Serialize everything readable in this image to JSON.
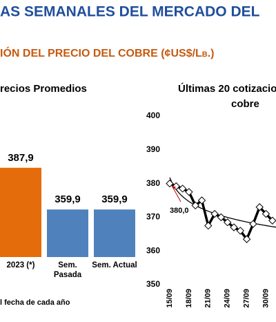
{
  "header": {
    "title": "AS SEMANALES DEL MERCADO DEL",
    "subtitle": "IÓN DEL PRECIO DEL COBRE (¢US$/Lb.)"
  },
  "chart_data": [
    {
      "type": "bar",
      "title": "recios Promedios",
      "categories": [
        "2023 (*)",
        "Sem.\nPasada",
        "Sem. Actual"
      ],
      "values": [
        387.9,
        359.9,
        359.9
      ],
      "value_labels": [
        "387,9",
        "359,9",
        "359,9"
      ],
      "colors": [
        "#e46c0a",
        "#4f81bd",
        "#4f81bd"
      ],
      "ylim": [
        328,
        398
      ],
      "note": "l fecha de cada año"
    },
    {
      "type": "line",
      "title": [
        "Últimas 20 cotizacio",
        "cobre"
      ],
      "categories": [
        "15/09",
        null,
        null,
        "18/09",
        null,
        null,
        "21/09",
        null,
        null,
        "24/09",
        null,
        null,
        "27/09",
        null,
        null,
        "30/09",
        null
      ],
      "series": [
        {
          "color": "#000000",
          "values": [
            380.0,
            379.2,
            378.5,
            377.5,
            373.5,
            375,
            367.5,
            371,
            370,
            368.5,
            367,
            366,
            363.5,
            368,
            373,
            371,
            369
          ]
        }
      ],
      "ylim": [
        350,
        400
      ],
      "yticks": [
        350,
        360,
        370,
        380,
        390,
        400
      ],
      "trendline": true,
      "annotation": {
        "text": "380,0",
        "value": 380.0,
        "color": "#c00000"
      }
    }
  ]
}
